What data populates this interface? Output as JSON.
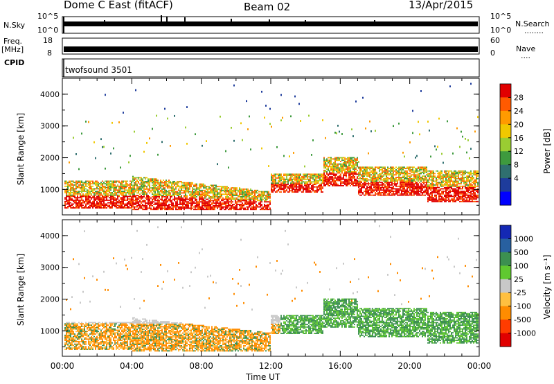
{
  "header": {
    "title": "Dome C East (fitACF)",
    "beam": "Beam 02",
    "date": "13/Apr/2015"
  },
  "top_panels": {
    "sky_label": "N.Sky",
    "sky_ticks": [
      "10^5",
      "10^0"
    ],
    "search_label": "N.Search",
    "search_dots": "........",
    "search_ticks": [
      "10^5",
      "10^0"
    ],
    "freq_label": "Freq.",
    "freq_unit": "[MHz]",
    "freq_ticks": [
      "18",
      "8"
    ],
    "nave_label": "Nave",
    "nave_dots": "....",
    "nave_ticks": [
      "60",
      "0"
    ],
    "cpid_label": "CPID",
    "cpid_value": "twofsound 3501"
  },
  "chart_data": [
    {
      "type": "heatmap",
      "title": "",
      "xlabel": "",
      "ylabel": "Slant Range [km]",
      "xlim": [
        0,
        24
      ],
      "ylim": [
        200,
        4500
      ],
      "x_ticks": [
        "00:00",
        "04:00",
        "08:00",
        "12:00",
        "16:00",
        "20:00",
        "00:00"
      ],
      "y_ticks": [
        "1000",
        "2000",
        "3000",
        "4000"
      ],
      "colorbar_label": "Power [dB]",
      "colorbar_ticks": [
        "28",
        "24",
        "20",
        "16",
        "12",
        "8",
        "4"
      ],
      "colorbar_colors": [
        "#e10000",
        "#ff5a00",
        "#ff9a00",
        "#f0c800",
        "#9acd32",
        "#3e9a3e",
        "#2f6f6f",
        "#1e3c9c",
        "#0000ff"
      ]
    },
    {
      "type": "heatmap",
      "title": "",
      "xlabel": "Time UT",
      "ylabel": "Slant Range [km]",
      "xlim": [
        0,
        24
      ],
      "ylim": [
        200,
        4500
      ],
      "x_ticks": [
        "00:00",
        "04:00",
        "08:00",
        "12:00",
        "16:00",
        "20:00",
        "00:00"
      ],
      "y_ticks": [
        "1000",
        "2000",
        "3000",
        "4000"
      ],
      "colorbar_label": "Velocity [m s⁻¹]",
      "colorbar_ticks": [
        "1000",
        "500",
        "100",
        "25",
        "-25",
        "-100",
        "-500",
        "-1000"
      ],
      "colorbar_colors": [
        "#1428b4",
        "#2860a0",
        "#3c9050",
        "#60c830",
        "#c8c8c8",
        "#ffc040",
        "#ff8c00",
        "#ff3c00",
        "#e00000"
      ]
    }
  ]
}
